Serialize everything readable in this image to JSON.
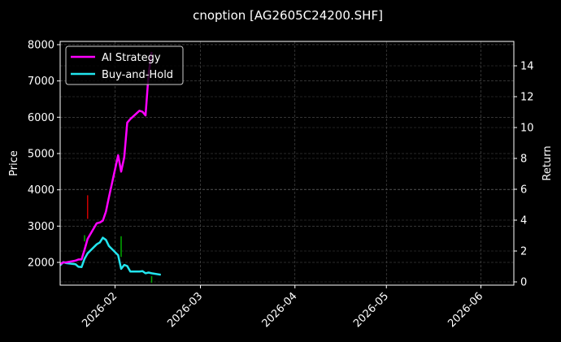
{
  "chart_data": {
    "type": "line",
    "title": "cnoption [AG2605C24200.SHF]",
    "xlabel": "",
    "ylabel": "Price",
    "ylabel_right": "Return",
    "x_ticks": [
      "2026-02",
      "2026-03",
      "2026-04",
      "2026-05",
      "2026-06"
    ],
    "y_ticks": [
      2000,
      3000,
      4000,
      5000,
      6000,
      7000,
      8000
    ],
    "y_right_ticks": [
      0,
      2,
      4,
      6,
      8,
      10,
      12,
      14
    ],
    "ylim": [
      1400,
      8100
    ],
    "ylim_right": [
      -0.2,
      15.5
    ],
    "grid": true,
    "legend_position": "upper left",
    "background": "#000000",
    "series": [
      {
        "name": "AI Strategy",
        "color": "#ff00ff",
        "axis": "left",
        "x": [
          "2026-01-14",
          "2026-01-15",
          "2026-01-16",
          "2026-01-19",
          "2026-01-20",
          "2026-01-21",
          "2026-01-22",
          "2026-01-23",
          "2026-01-26",
          "2026-01-27",
          "2026-01-28",
          "2026-01-29",
          "2026-01-30",
          "2026-02-02",
          "2026-02-03",
          "2026-02-04",
          "2026-02-05",
          "2026-02-06",
          "2026-02-09",
          "2026-02-10",
          "2026-02-11",
          "2026-02-12",
          "2026-02-13"
        ],
        "values": [
          1950,
          2000,
          2000,
          2050,
          2080,
          2080,
          2350,
          2650,
          3080,
          3100,
          3150,
          3400,
          3800,
          4950,
          4500,
          4900,
          5850,
          5950,
          6180,
          6150,
          6050,
          7200,
          7800
        ]
      },
      {
        "name": "Buy-and-Hold",
        "color": "#22e5ee",
        "axis": "left",
        "x": [
          "2026-01-14",
          "2026-01-15",
          "2026-01-16",
          "2026-01-19",
          "2026-01-20",
          "2026-01-21",
          "2026-01-22",
          "2026-01-23",
          "2026-01-26",
          "2026-01-27",
          "2026-01-28",
          "2026-01-29",
          "2026-01-30",
          "2026-02-02",
          "2026-02-03",
          "2026-02-04",
          "2026-02-05",
          "2026-02-06",
          "2026-02-09",
          "2026-02-10",
          "2026-02-11",
          "2026-02-12",
          "2026-02-13",
          "2026-02-16"
        ],
        "values": [
          1920,
          2010,
          1980,
          1950,
          1880,
          1870,
          2100,
          2250,
          2500,
          2550,
          2680,
          2620,
          2450,
          2200,
          1820,
          1930,
          1900,
          1750,
          1750,
          1760,
          1700,
          1720,
          1700,
          1660
        ]
      }
    ],
    "signals": [
      {
        "type": "sell",
        "color": "#cc0000",
        "x": "2026-01-23",
        "y_from": 3200,
        "y_to": 3850
      },
      {
        "type": "buy",
        "color": "#00aa00",
        "x": "2026-01-22",
        "y_from": 2580,
        "y_to": 2750
      },
      {
        "type": "buy",
        "color": "#00aa00",
        "x": "2026-02-03",
        "y_from": 2150,
        "y_to": 2720
      },
      {
        "type": "buy",
        "color": "#00aa00",
        "x": "2026-02-13",
        "y_from": 1440,
        "y_to": 1620
      }
    ]
  }
}
